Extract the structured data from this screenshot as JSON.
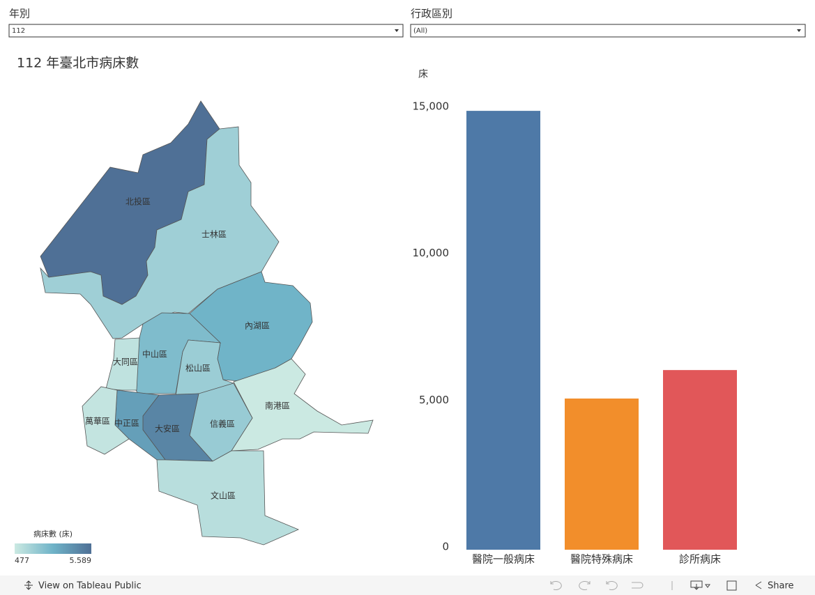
{
  "filters": [
    {
      "label": "年別",
      "value": "112"
    },
    {
      "label": "行政區別",
      "value": "(All)"
    }
  ],
  "map": {
    "title": "112 年臺北市病床數",
    "districts": [
      {
        "name": "北投區",
        "value": 5589
      },
      {
        "name": "士林區",
        "value": 1700
      },
      {
        "name": "內湖區",
        "value": 3000
      },
      {
        "name": "中山區",
        "value": 2600
      },
      {
        "name": "大同區",
        "value": 800
      },
      {
        "name": "松山區",
        "value": 1800
      },
      {
        "name": "南港區",
        "value": 477
      },
      {
        "name": "信義區",
        "value": 1900
      },
      {
        "name": "大安區",
        "value": 4800
      },
      {
        "name": "中正區",
        "value": 3800
      },
      {
        "name": "萬華區",
        "value": 700
      },
      {
        "name": "文山區",
        "value": 1000
      }
    ],
    "legend": {
      "title": "病床數 (床)",
      "min": 477,
      "max": {
        "value": 5589,
        "label": "5.589"
      }
    }
  },
  "chart_data": {
    "type": "bar",
    "y_label": "床",
    "categories": [
      "醫院一般病床",
      "醫院特殊病床",
      "診所病床"
    ],
    "values": [
      14950,
      5150,
      6120
    ],
    "colors": [
      "#4e79a7",
      "#f28e2b",
      "#e15759"
    ],
    "ylim": [
      0,
      15000
    ],
    "yticks": [
      0,
      {
        "value": 5000,
        "label": "5,000"
      },
      {
        "value": 10000,
        "label": "10,000"
      },
      {
        "value": 15000,
        "label": "15,000"
      }
    ]
  },
  "toolbar": {
    "link": "View on Tableau Public",
    "share": "Share"
  }
}
